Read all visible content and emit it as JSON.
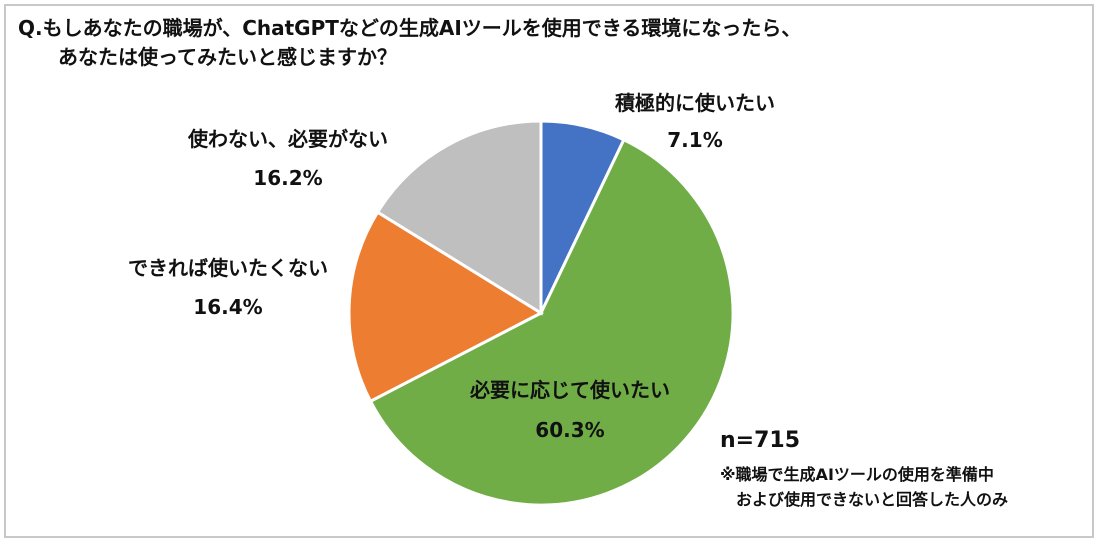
{
  "question": {
    "line1": "Q.もしあなたの職場が、ChatGPTなどの生成AIツールを使用できる環境になったら、",
    "line2": "あなたは使ってみたいと感じますか？"
  },
  "sample": {
    "n": "n=715",
    "note_line1": "※職場で生成AIツールの使用を準備中",
    "note_line2": "および使用できないと回答した人のみ"
  },
  "chart_data": {
    "type": "pie",
    "start_angle": "12 o'clock",
    "direction": "clockwise",
    "slices": [
      {
        "label": "積極的に使いたい",
        "value": 7.1,
        "display": "7.1%",
        "color": "#4472c4"
      },
      {
        "label": "必要に応じて使いたい",
        "value": 60.3,
        "display": "60.3%",
        "color": "#70ad47"
      },
      {
        "label": "できれば使いたくない",
        "value": 16.4,
        "display": "16.4%",
        "color": "#ed7d31"
      },
      {
        "label": "使わない、必要がない",
        "value": 16.2,
        "display": "16.2%",
        "color": "#bfbfbf"
      }
    ]
  }
}
